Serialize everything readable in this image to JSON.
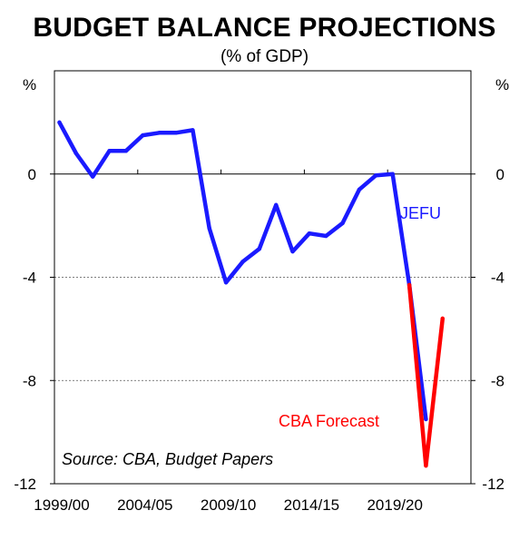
{
  "chart_data": {
    "type": "line",
    "title": "BUDGET BALANCE PROJECTIONS",
    "subtitle": "(% of GDP)",
    "ylabel_left": "%",
    "ylabel_right": "%",
    "ylim": [
      -12,
      4
    ],
    "y_ticks": [
      0,
      -4,
      -8,
      -12
    ],
    "y_tick_labels": [
      "0",
      "-4",
      "-8",
      "-12"
    ],
    "x_ticks": [
      1999,
      2004,
      2009,
      2014,
      2019
    ],
    "x_tick_labels": [
      "1999/00",
      "2004/05",
      "2009/10",
      "2014/15",
      "2019/20"
    ],
    "xlim": [
      1999,
      2024
    ],
    "grid": "dashed horizontal at -4 and -8",
    "series": [
      {
        "name": "JEFU",
        "color": "#1a1aff",
        "x": [
          1999.3,
          2000.3,
          2001.3,
          2002.3,
          2003.3,
          2004.3,
          2005.3,
          2006.3,
          2007.3,
          2008.3,
          2009.3,
          2010.3,
          2011.3,
          2012.3,
          2013.3,
          2014.3,
          2015.3,
          2016.3,
          2017.3,
          2018.3,
          2019.3,
          2020.3,
          2021.3
        ],
        "values": [
          2.0,
          0.8,
          -0.1,
          0.9,
          0.9,
          1.5,
          1.6,
          1.6,
          1.7,
          -2.1,
          -4.2,
          -3.4,
          -2.9,
          -1.2,
          -3.0,
          -2.3,
          -2.4,
          -1.9,
          -0.6,
          -0.05,
          0.0,
          -4.3,
          -9.5
        ]
      },
      {
        "name": "CBA Forecast",
        "color": "#ff0000",
        "x": [
          2020.3,
          2021.3,
          2022.3
        ],
        "values": [
          -4.3,
          -11.3,
          -5.6
        ]
      }
    ],
    "annotations": [
      "JEFU",
      "CBA Forecast",
      "Source: CBA, Budget Papers"
    ]
  }
}
